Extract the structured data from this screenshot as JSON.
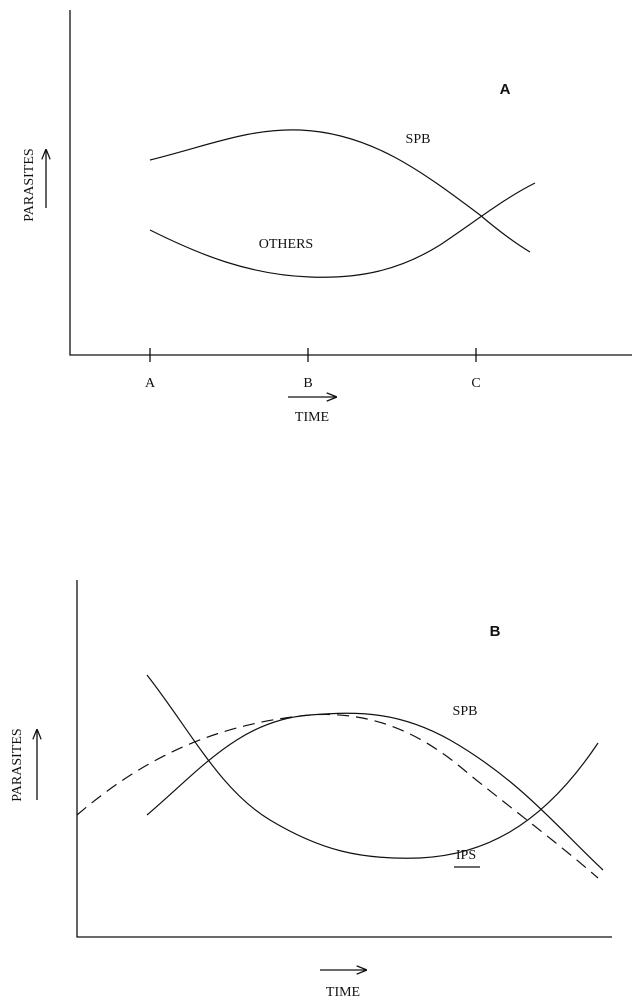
{
  "panels": [
    {
      "label": "A",
      "y_label": "PARASITES",
      "x_label": "TIME",
      "ticks": [
        "A",
        "B",
        "C"
      ],
      "curves": [
        "SPB",
        "OTHERS"
      ]
    },
    {
      "label": "B",
      "y_label": "PARASITES",
      "x_label": "TIME",
      "curves": [
        "SPB",
        "IPS"
      ]
    }
  ]
}
